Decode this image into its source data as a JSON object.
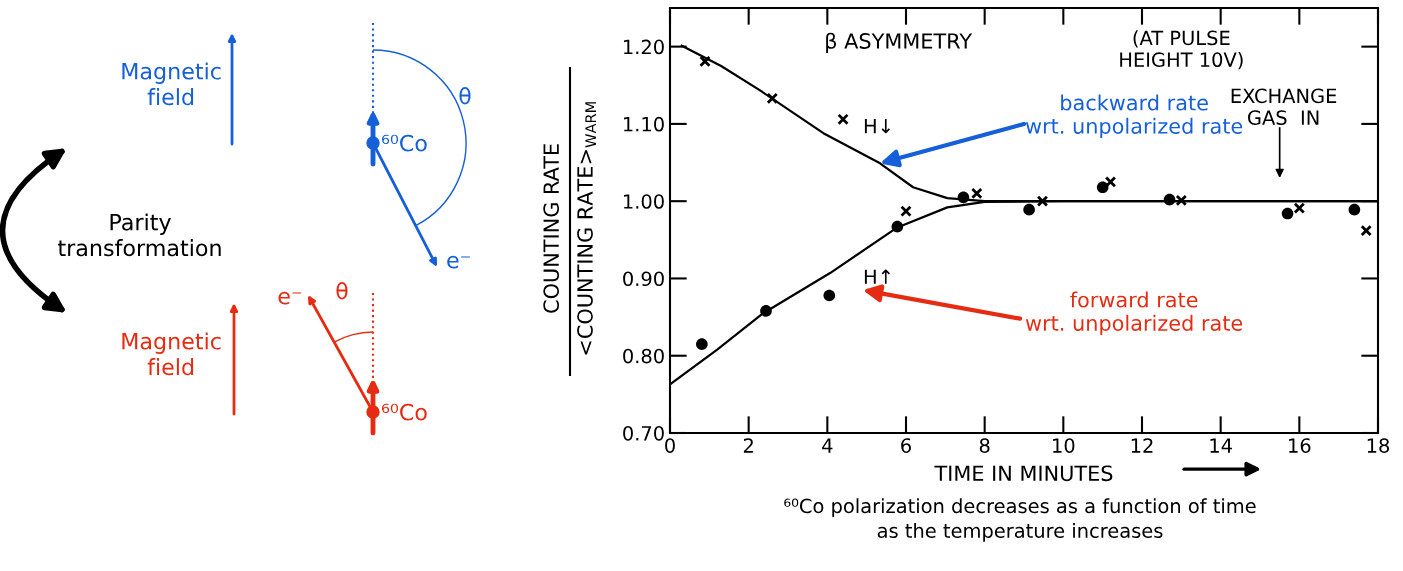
{
  "chart_data": [
    {
      "type": "other",
      "annotations": [
        "Magnetic\nfield",
        "⁶⁰Co",
        "θ",
        "e⁻",
        "Parity\ntransformation",
        "Magnetic\nfield",
        "e⁻",
        "θ",
        "⁶⁰Co"
      ],
      "colors": [
        "#1560d8",
        "#1560d8",
        "#1560d8",
        "#1560d8",
        "#000000",
        "#e52c12",
        "#e52c12",
        "#e52c12",
        "#e52c12"
      ]
    },
    {
      "type": "scatter",
      "xlabel": "TIME IN MINUTES",
      "ylabel": "COUNTING RATE\n<COUNTING RATE>$_{WARM}$",
      "series": [
        {
          "type": "scatter",
          "marker": "cross",
          "color": "#000000",
          "x": [
            0.89,
            2.6,
            4.4,
            6.0,
            7.8,
            9.47,
            11.2,
            13.0,
            16.0,
            17.7
          ],
          "values": [
            1.181,
            1.133,
            1.106,
            0.987,
            1.01,
            1.0,
            1.025,
            1.001,
            0.991,
            0.962
          ]
        },
        {
          "type": "scatter",
          "marker": "circle",
          "color": "#000000",
          "x": [
            0.81,
            2.44,
            4.05,
            5.78,
            7.46,
            9.13,
            11.0,
            12.7,
            15.7,
            17.4
          ],
          "values": [
            0.815,
            0.858,
            0.878,
            0.967,
            1.005,
            0.989,
            1.018,
            1.002,
            0.984,
            0.989
          ]
        },
        {
          "type": "line",
          "color": "#000000",
          "x": [
            0.3,
            1.3,
            2.3,
            3.9,
            5.34,
            6.18,
            7.05,
            8.0,
            10.0,
            18.0
          ],
          "values": [
            1.201,
            1.175,
            1.143,
            1.088,
            1.049,
            1.018,
            1.004,
            1.0,
            1.0,
            1.0
          ]
        },
        {
          "type": "line",
          "color": "#000000",
          "x": [
            0.0,
            1.2,
            2.37,
            4.07,
            5.78,
            7.05,
            8.0,
            10.0,
            18.0
          ],
          "values": [
            0.763,
            0.808,
            0.855,
            0.907,
            0.966,
            0.992,
            0.999,
            1.0,
            1.0
          ]
        }
      ],
      "xlim": [
        0,
        18
      ],
      "xticks": [
        0,
        2,
        4,
        6,
        8,
        10,
        12,
        14,
        16,
        18
      ],
      "ylim": [
        0.7,
        1.25
      ],
      "yticks": [
        {
          "value": 0.7,
          "label": "0.70"
        },
        {
          "value": 0.8,
          "label": "0.80"
        },
        {
          "value": 0.9,
          "label": "0.90"
        },
        {
          "value": 1.0,
          "label": "1.00"
        },
        {
          "value": 1.1,
          "label": "1.10"
        },
        {
          "value": 1.2,
          "label": "1.20"
        }
      ],
      "grid": false,
      "annotations": [
        "β ASYMMETRY",
        "(AT PULSE\nHEIGHT 10V)",
        "H↓",
        "H↑",
        "EXCHANGE\nGAS  IN",
        {
          "text": "backward rate\nwrt. unpolarized rate",
          "x": 5.34,
          "y": 1.049
        },
        "forward rate\nwrt. unpolarized rate",
        "⁶⁰Co polarization decreases as a function of time\nas the temperature increases"
      ]
    }
  ]
}
